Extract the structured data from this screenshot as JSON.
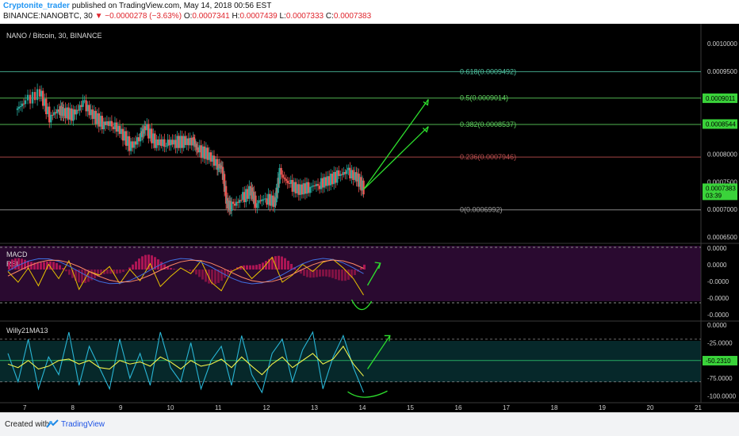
{
  "header": {
    "author": "Cryptonite_trader",
    "published": "published on TradingView.com, May 14, 2018 00:56 EST",
    "symbol": "BINANCE:NANOBTC, 30",
    "arrow": "▼",
    "change": "−0.0000278 (−3.63%)",
    "o_label": "O:",
    "o_value": "0.0007341",
    "h_label": "H:",
    "h_value": "0.0007439",
    "l_label": "L:",
    "l_value": "0.0007333",
    "c_label": "C:",
    "c_value": "0.0007383"
  },
  "footer": {
    "created_with": "Created with",
    "brand": "TradingView"
  },
  "colors": {
    "background": "#000000",
    "up": "#26a69a",
    "down": "#ef5350",
    "fib_line": "#1f9b6b",
    "green_line": "#3ad33a",
    "red_line": "#8b2020",
    "arrow": "#2ee02e",
    "rsi": "#e6c200",
    "willy": "#29b6d6",
    "willy_ma": "#f2f24a",
    "macd_panel": "#2a0a30",
    "willy_panel": "#06282a"
  },
  "chart_data": [
    {
      "type": "candlestick",
      "title": "NANO / Bitcoin, 30, BINANCE",
      "x_ticks": [
        "7",
        "8",
        "9",
        "10",
        "11",
        "12",
        "13",
        "14",
        "15",
        "16",
        "17",
        "18",
        "19",
        "20",
        "21"
      ],
      "y_ticks": [
        "0.0010000",
        "0.0009500",
        "0.0009000",
        "0.0008500",
        "0.0008000",
        "0.0007500",
        "0.0007000",
        "0.0006500"
      ],
      "ylim": [
        0.00064,
        0.00103
      ],
      "fib_levels": [
        {
          "label": "0.618(0.0009492)",
          "value": 0.0009492,
          "color": "#4fc3a1"
        },
        {
          "label": "0.5(0.0009014)",
          "value": 0.0009014,
          "color": "#5fd35f"
        },
        {
          "label": "0.382(0.0008537)",
          "value": 0.0008537,
          "color": "#5fd35f"
        },
        {
          "label": "0.236(0.0007946)",
          "value": 0.0007946,
          "color": "#c05050"
        },
        {
          "label": "0(0.0006992)",
          "value": 0.0006992,
          "color": "#9e9e9e"
        }
      ],
      "price_tags": [
        {
          "label": "0.0009011",
          "value": 0.0009011
        },
        {
          "label": "0.0008544",
          "value": 0.0008544
        },
        {
          "label": "0.0007383",
          "value": 0.0007383
        },
        {
          "label": "03:39",
          "value": 0.0007255
        }
      ],
      "arrows": [
        {
          "from": [
            14.05,
            0.000736
          ],
          "to": [
            15.4,
            0.000899
          ]
        },
        {
          "from": [
            14.05,
            0.000736
          ],
          "to": [
            15.4,
            0.00085
          ]
        }
      ],
      "series": [
        {
          "name": "NANOBTC",
          "x": [
            6.8,
            7.0,
            7.3,
            7.5,
            7.7,
            7.8,
            8.0,
            8.2,
            8.4,
            8.6,
            8.8,
            9.0,
            9.2,
            9.4,
            9.5,
            9.7,
            9.9,
            10.1,
            10.3,
            10.5,
            10.6,
            10.8,
            11.0,
            11.1,
            11.2,
            11.3,
            11.5,
            11.7,
            11.8,
            12.0,
            12.2,
            12.3,
            12.5,
            12.7,
            12.9,
            13.1,
            13.3,
            13.5,
            13.7,
            13.9,
            14.05
          ],
          "close": [
            0.00088,
            0.000895,
            0.000912,
            0.000868,
            0.00088,
            0.000876,
            0.00087,
            0.000893,
            0.00087,
            0.000856,
            0.000855,
            0.00084,
            0.000812,
            0.000832,
            0.000848,
            0.000822,
            0.00082,
            0.000822,
            0.000822,
            0.000823,
            0.000806,
            0.0008,
            0.00078,
            0.000775,
            0.00071,
            0.000705,
            0.000718,
            0.000735,
            0.000712,
            0.00072,
            0.000713,
            0.000765,
            0.000745,
            0.000735,
            0.00074,
            0.000745,
            0.000752,
            0.00076,
            0.000768,
            0.000758,
            0.000738
          ]
        }
      ]
    },
    {
      "type": "line",
      "title": "MACD",
      "series": [
        {
          "name": "RSI",
          "values": [
            55,
            40,
            60,
            35,
            65,
            45,
            70,
            30,
            55,
            50,
            62,
            38,
            58,
            42,
            66,
            34,
            48,
            60,
            52,
            70,
            40,
            28,
            55,
            62,
            45,
            58,
            75,
            40,
            50,
            65,
            55,
            68,
            72,
            60,
            45,
            22
          ]
        }
      ],
      "y_ticks": [
        "0.0000",
        "0.0000",
        "-0.0000",
        "-0.0000",
        "-0.0000"
      ]
    },
    {
      "type": "line",
      "title": "Willy21MA13",
      "ylim": [
        -105,
        0
      ],
      "y_ticks": [
        "0.0000",
        "-25.0000",
        "-50.2310",
        "-75.0000",
        "-100.0000"
      ],
      "levels": [
        -20,
        -50,
        -80
      ],
      "series": [
        {
          "name": "Willy",
          "values": [
            -40,
            -80,
            -20,
            -90,
            -45,
            -70,
            -10,
            -85,
            -30,
            -60,
            -90,
            -20,
            -75,
            -40,
            -85,
            -10,
            -60,
            -80,
            -25,
            -90,
            -50,
            -30,
            -85,
            -15,
            -70,
            -95,
            -40,
            -20,
            -80,
            -35,
            -10,
            -90,
            -45,
            -15,
            -60,
            -95
          ]
        },
        {
          "name": "MA13",
          "values": [
            -55,
            -60,
            -50,
            -62,
            -58,
            -50,
            -48,
            -55,
            -50,
            -60,
            -62,
            -50,
            -55,
            -52,
            -58,
            -45,
            -52,
            -62,
            -50,
            -58,
            -55,
            -48,
            -60,
            -45,
            -58,
            -70,
            -55,
            -45,
            -60,
            -50,
            -40,
            -55,
            -48,
            -30,
            -55,
            -72
          ]
        }
      ]
    }
  ]
}
